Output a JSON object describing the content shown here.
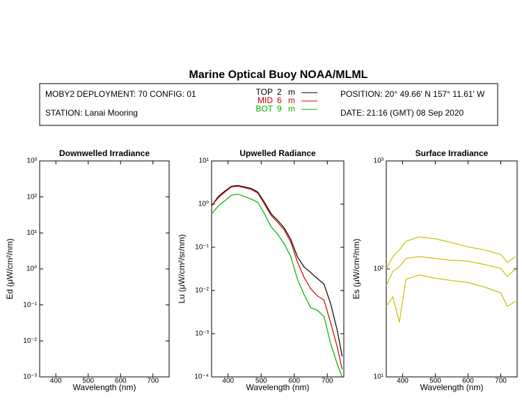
{
  "header": {
    "title": "Marine Optical Buoy NOAA/MLML",
    "deployment": "MOBY2 DEPLOYMENT: 70 CONFIG: 01",
    "station": "STATION: Lanai Mooring",
    "position": "POSITION: 20° 49.66' N   157° 11.61' W",
    "date": "DATE: 21:16 (GMT) 08 Sep 2020",
    "legend": [
      {
        "name": "TOP",
        "depth": "2",
        "unit": "m",
        "color": "#000000"
      },
      {
        "name": "MID",
        "depth": "6",
        "unit": "m",
        "color": "#d00000"
      },
      {
        "name": "BOT",
        "depth": "9",
        "unit": "m",
        "color": "#00b000"
      }
    ]
  },
  "chart_data": [
    {
      "type": "line",
      "title": "Downwelled Irradiance",
      "x_label": "Wavelength (nm)",
      "y_label": "Ed (μW/cm²/nm)",
      "log_y": true,
      "xlim": [
        350,
        750
      ],
      "xticks": [
        400,
        500,
        600,
        700
      ],
      "ylim": [
        0.001,
        1000
      ],
      "yticks": [
        {
          "value": 0.001,
          "label": "10⁻³"
        },
        {
          "value": 0.01,
          "label": "10⁻²"
        },
        {
          "value": 0.1,
          "label": "10⁻¹"
        },
        {
          "value": 1,
          "label": "10⁰"
        },
        {
          "value": 10,
          "label": "10¹"
        },
        {
          "value": 100,
          "label": "10²"
        },
        {
          "value": 1000,
          "label": "10³"
        }
      ],
      "x": [],
      "series": []
    },
    {
      "type": "line",
      "title": "Upwelled Radiance",
      "x_label": "Wavelength (nm)",
      "y_label": "Lu (μW/cm²/sr/nm)",
      "log_y": true,
      "xlim": [
        350,
        750
      ],
      "xticks": [
        400,
        500,
        600,
        700
      ],
      "ylim": [
        0.0001,
        10
      ],
      "yticks": [
        {
          "value": 0.0001,
          "label": "10⁻⁴"
        },
        {
          "value": 0.001,
          "label": "10⁻³"
        },
        {
          "value": 0.01,
          "label": "10⁻²"
        },
        {
          "value": 0.1,
          "label": "10⁻¹"
        },
        {
          "value": 1,
          "label": "10⁰"
        },
        {
          "value": 10,
          "label": "10¹"
        }
      ],
      "x": [
        350,
        370,
        390,
        410,
        430,
        450,
        470,
        490,
        510,
        530,
        550,
        570,
        590,
        610,
        630,
        650,
        670,
        690,
        710,
        730,
        745
      ],
      "series": [
        {
          "name": "TOP",
          "color": "#000000",
          "values": [
            0.9,
            1.5,
            2.0,
            2.6,
            2.7,
            2.5,
            2.3,
            1.9,
            1.1,
            0.6,
            0.42,
            0.28,
            0.15,
            0.06,
            0.035,
            0.026,
            0.019,
            0.014,
            0.005,
            0.0012,
            0.0003
          ]
        },
        {
          "name": "MID",
          "color": "#d00000",
          "values": [
            0.9,
            1.4,
            1.9,
            2.5,
            2.6,
            2.4,
            2.2,
            1.8,
            1.0,
            0.55,
            0.38,
            0.25,
            0.13,
            0.045,
            0.02,
            0.011,
            0.0075,
            0.006,
            0.0018,
            0.0005,
            0.00015
          ]
        },
        {
          "name": "BOT",
          "color": "#00b000",
          "values": [
            0.6,
            0.9,
            1.2,
            1.6,
            1.7,
            1.5,
            1.3,
            1.1,
            0.6,
            0.3,
            0.2,
            0.12,
            0.06,
            0.018,
            0.008,
            0.004,
            0.0035,
            0.0025,
            0.0006,
            0.0002,
            0.0001
          ]
        }
      ]
    },
    {
      "type": "line",
      "title": "Surface Irradiance",
      "x_label": "Wavelength (nm)",
      "y_label": "Es (μW/cm²/nm)",
      "log_y": true,
      "xlim": [
        350,
        750
      ],
      "xticks": [
        400,
        500,
        600,
        700
      ],
      "ylim": [
        10,
        1000
      ],
      "yticks": [
        {
          "value": 10,
          "label": "10¹"
        },
        {
          "value": 100,
          "label": "10²"
        },
        {
          "value": 1000,
          "label": "10³"
        }
      ],
      "x": [
        350,
        370,
        390,
        410,
        450,
        500,
        550,
        600,
        650,
        700,
        720,
        745
      ],
      "series": [
        {
          "color": "#c8c000",
          "values": [
            100,
            130,
            150,
            180,
            198,
            190,
            175,
            160,
            150,
            136,
            115,
            130
          ]
        },
        {
          "color": "#c8c000",
          "values": [
            70,
            95,
            105,
            125,
            130,
            125,
            120,
            118,
            110,
            101,
            85,
            100
          ]
        },
        {
          "color": "#c8c000",
          "values": [
            45,
            55,
            32,
            80,
            88,
            82,
            78,
            75,
            68,
            60,
            45,
            50
          ]
        }
      ]
    }
  ]
}
